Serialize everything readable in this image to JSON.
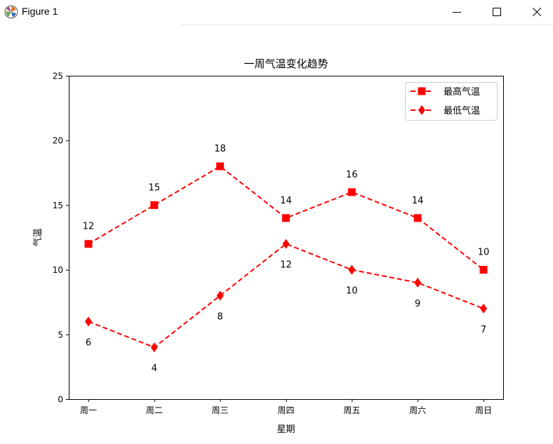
{
  "window": {
    "title": "Figure 1",
    "icon": "matplotlib-logo-icon",
    "controls": [
      "minimize-icon",
      "maximize-icon",
      "close-icon"
    ]
  },
  "chart_data": {
    "type": "line",
    "title": "一周气温变化趋势",
    "xlabel": "星期",
    "ylabel": "气温",
    "categories": [
      "周一",
      "周二",
      "周三",
      "周四",
      "周五",
      "周六",
      "周日"
    ],
    "ylim": [
      0,
      25
    ],
    "yticks": [
      0,
      5,
      10,
      15,
      20,
      25
    ],
    "grid": false,
    "legend_position": "top-right",
    "series": [
      {
        "name": "最高气温",
        "values": [
          12,
          15,
          18,
          14,
          16,
          14,
          10
        ],
        "color": "#ff0000",
        "marker": "square",
        "linestyle": "dashed",
        "label_position": "above"
      },
      {
        "name": "最低气温",
        "values": [
          6,
          4,
          8,
          12,
          10,
          9,
          7
        ],
        "color": "#ff0000",
        "marker": "diamond",
        "linestyle": "dashed",
        "label_position": "below"
      }
    ]
  }
}
